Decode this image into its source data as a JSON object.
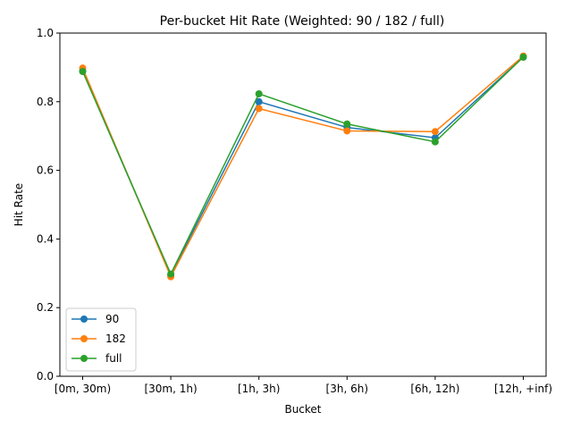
{
  "chart_data": {
    "type": "line",
    "title": "Per-bucket Hit Rate (Weighted: 90 / 182 / full)",
    "xlabel": "Bucket",
    "ylabel": "Hit Rate",
    "categories": [
      "[0m, 30m)",
      "[30m, 1h)",
      "[1h, 3h)",
      "[3h, 6h)",
      "[6h, 12h)",
      "[12h, +inf)"
    ],
    "ylim": [
      0.0,
      1.0
    ],
    "yticks": [
      "0.0",
      "0.2",
      "0.4",
      "0.6",
      "0.8",
      "1.0"
    ],
    "grid": false,
    "legend_position": "lower-left",
    "series": [
      {
        "name": "90",
        "color": "#1f77b4",
        "values": [
          0.89,
          0.295,
          0.8,
          0.725,
          0.695,
          0.93
        ]
      },
      {
        "name": "182",
        "color": "#ff7f0e",
        "values": [
          0.898,
          0.29,
          0.78,
          0.715,
          0.713,
          0.933
        ]
      },
      {
        "name": "full",
        "color": "#2ca02c",
        "values": [
          0.888,
          0.298,
          0.823,
          0.735,
          0.683,
          0.93
        ]
      }
    ]
  }
}
